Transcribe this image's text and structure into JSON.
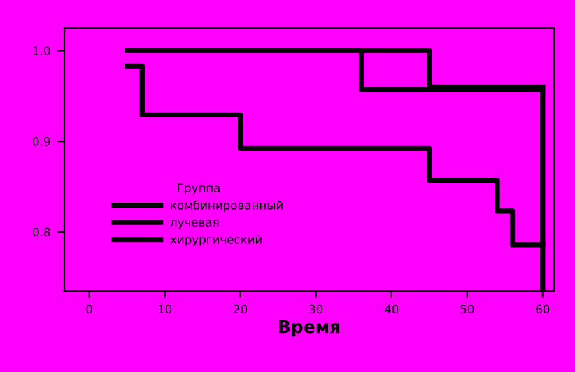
{
  "chart_data": {
    "type": "step",
    "xlabel": "Время",
    "legend_title": "Группа",
    "legend": "center left",
    "grid": false,
    "marker": "none",
    "line_style": "solid",
    "xlim": [
      -3.3,
      61.5
    ],
    "ylim": [
      0.735,
      1.025
    ],
    "xticks": [
      0,
      10,
      20,
      30,
      40,
      50,
      60
    ],
    "yticks": [
      {
        "value": 0.8,
        "label": "0.8"
      },
      {
        "value": 0.9,
        "label": "0.9"
      },
      {
        "value": 1.0,
        "label": "1.0"
      }
    ],
    "series": [
      {
        "name": "комбинированный",
        "color": "#000000",
        "x": [
          5,
          45,
          60
        ],
        "values": [
          1.0,
          0.96,
          0.96
        ]
      },
      {
        "name": "лучевая",
        "color": "#000000",
        "x": [
          5,
          36,
          60,
          60
        ],
        "values": [
          1.0,
          0.957,
          0.957,
          0.735
        ]
      },
      {
        "name": "хирургический",
        "color": "#000000",
        "x": [
          5,
          7,
          20,
          45,
          54,
          56,
          60
        ],
        "values": [
          0.983,
          0.929,
          0.892,
          0.857,
          0.823,
          0.786,
          0.786
        ]
      }
    ]
  }
}
